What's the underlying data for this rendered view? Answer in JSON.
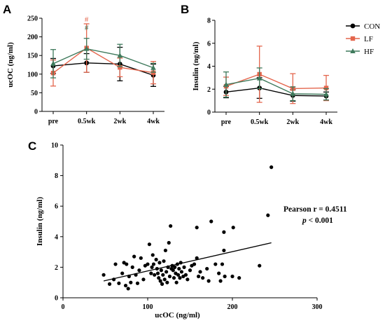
{
  "colors": {
    "CON": "#000000",
    "LF": "#e4664d",
    "HF": "#3f7a5c"
  },
  "chart_data": [
    {
      "panel": "A",
      "type": "line",
      "categories": [
        "pre",
        "0.5wk",
        "2wk",
        "4wk"
      ],
      "ylabel": "ucOC (ng/ml)",
      "ylim": [
        0,
        250
      ],
      "yticks": [
        0,
        50,
        100,
        150,
        200,
        250
      ],
      "series": [
        {
          "name": "CON",
          "values": [
            122,
            130,
            127,
            97
          ],
          "err": [
            20,
            25,
            45,
            30
          ]
        },
        {
          "name": "LF",
          "values": [
            103,
            170,
            118,
            104
          ],
          "err": [
            35,
            65,
            25,
            30
          ]
        },
        {
          "name": "HF",
          "values": [
            128,
            168,
            150,
            117
          ],
          "err": [
            38,
            28,
            30,
            12
          ]
        }
      ],
      "annotations": [
        {
          "text": "#",
          "category": "0.5wk",
          "y": 248,
          "series": "LF"
        },
        {
          "text": "#",
          "category": "0.5wk",
          "y": 226,
          "series": "HF"
        }
      ],
      "legend": [
        "CON",
        "LF",
        "HF"
      ],
      "legend_position": "right"
    },
    {
      "panel": "B",
      "type": "line",
      "categories": [
        "pre",
        "0.5wk",
        "2wk",
        "4wk"
      ],
      "ylabel": "Insulin (ng/ml)",
      "ylim": [
        0,
        8
      ],
      "yticks": [
        0,
        2,
        4,
        6,
        8
      ],
      "series": [
        {
          "name": "CON",
          "values": [
            1.75,
            2.1,
            1.45,
            1.4
          ],
          "err": [
            0.5,
            0.9,
            0.5,
            0.35
          ]
        },
        {
          "name": "LF",
          "values": [
            2.25,
            3.3,
            2.05,
            2.1
          ],
          "err": [
            0.8,
            2.45,
            1.3,
            1.1
          ]
        },
        {
          "name": "HF",
          "values": [
            2.4,
            2.95,
            1.6,
            1.55
          ],
          "err": [
            1.1,
            0.9,
            0.6,
            0.5
          ]
        }
      ]
    },
    {
      "panel": "C",
      "type": "scatter",
      "xlabel": "ucOC (ng/ml)",
      "ylabel": "Insulin (ng/ml)",
      "xlim": [
        0,
        300
      ],
      "ylim": [
        0,
        10
      ],
      "xticks": [
        0,
        100,
        200,
        300
      ],
      "yticks": [
        0,
        2,
        4,
        6,
        8,
        10
      ],
      "points": [
        [
          48,
          1.5
        ],
        [
          55,
          0.9
        ],
        [
          60,
          1.2
        ],
        [
          62,
          2.2
        ],
        [
          66,
          0.95
        ],
        [
          70,
          1.6
        ],
        [
          72,
          2.3
        ],
        [
          74,
          0.8
        ],
        [
          75,
          2.2
        ],
        [
          77,
          0.6
        ],
        [
          78,
          1.4
        ],
        [
          80,
          1.0
        ],
        [
          82,
          2.0
        ],
        [
          84,
          2.7
        ],
        [
          86,
          1.5
        ],
        [
          88,
          0.95
        ],
        [
          90,
          1.8
        ],
        [
          92,
          2.6
        ],
        [
          95,
          1.2
        ],
        [
          97,
          2.1
        ],
        [
          100,
          2.2
        ],
        [
          102,
          3.5
        ],
        [
          104,
          1.6
        ],
        [
          105,
          2.0
        ],
        [
          106,
          2.8
        ],
        [
          107,
          2.2
        ],
        [
          108,
          1.5
        ],
        [
          110,
          2.5
        ],
        [
          111,
          1.9
        ],
        [
          112,
          1.6
        ],
        [
          113,
          1.3
        ],
        [
          114,
          2.3
        ],
        [
          115,
          1.1
        ],
        [
          116,
          1.8
        ],
        [
          117,
          0.9
        ],
        [
          118,
          1.5
        ],
        [
          119,
          2.4
        ],
        [
          120,
          1.2
        ],
        [
          121,
          3.1
        ],
        [
          122,
          1.7
        ],
        [
          123,
          1.0
        ],
        [
          124,
          2.0
        ],
        [
          125,
          3.6
        ],
        [
          126,
          1.4
        ],
        [
          127,
          4.7
        ],
        [
          128,
          1.9
        ],
        [
          129,
          2.1
        ],
        [
          130,
          1.8
        ],
        [
          131,
          1.3
        ],
        [
          132,
          2.0
        ],
        [
          133,
          1.6
        ],
        [
          134,
          1.0
        ],
        [
          135,
          2.2
        ],
        [
          136,
          1.5
        ],
        [
          137,
          1.9
        ],
        [
          138,
          1.3
        ],
        [
          139,
          2.3
        ],
        [
          140,
          1.7
        ],
        [
          142,
          1.4
        ],
        [
          143,
          2.0
        ],
        [
          145,
          1.5
        ],
        [
          147,
          1.2
        ],
        [
          150,
          1.8
        ],
        [
          152,
          2.1
        ],
        [
          155,
          2.2
        ],
        [
          158,
          2.6
        ],
        [
          158,
          4.6
        ],
        [
          160,
          1.4
        ],
        [
          162,
          1.7
        ],
        [
          165,
          1.3
        ],
        [
          170,
          1.9
        ],
        [
          172,
          1.1
        ],
        [
          175,
          5.0
        ],
        [
          180,
          2.2
        ],
        [
          184,
          1.6
        ],
        [
          186,
          1.1
        ],
        [
          188,
          2.2
        ],
        [
          190,
          3.1
        ],
        [
          190,
          4.3
        ],
        [
          191,
          1.4
        ],
        [
          200,
          1.4
        ],
        [
          201,
          4.6
        ],
        [
          208,
          1.3
        ],
        [
          232,
          2.1
        ],
        [
          242,
          5.4
        ],
        [
          246,
          8.55
        ]
      ],
      "fit": {
        "x": [
          48,
          246
        ],
        "y": [
          1.1,
          3.6
        ]
      },
      "annotation": {
        "line1": "Pearson r = 0.4511",
        "line2_italic": "p",
        "line2_rest": " < 0.001"
      }
    }
  ]
}
